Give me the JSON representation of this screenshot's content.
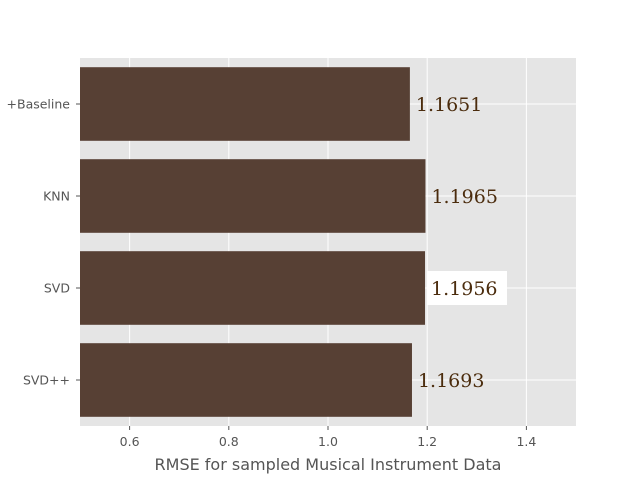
{
  "chart_data": {
    "type": "bar",
    "orientation": "horizontal",
    "categories": [
      "+Baseline",
      "KNN",
      "SVD",
      "SVD++"
    ],
    "values": [
      1.1651,
      1.1965,
      1.1956,
      1.1693
    ],
    "data_labels": [
      "1.1651",
      "1.1965",
      "1.1956",
      "1.1693"
    ],
    "highlighted_label_index": 2,
    "xlabel": "RMSE for sampled Musical Instrument Data",
    "ylabel": "",
    "title": "",
    "xlim": [
      0.5,
      1.5
    ],
    "xticks": [
      0.6,
      0.8,
      1.0,
      1.2,
      1.4
    ],
    "xtick_labels": [
      "0.6",
      "0.8",
      "1.0",
      "1.2",
      "1.4"
    ],
    "grid": true,
    "colors": {
      "bar": "#574034",
      "plot_background": "#e5e5e5",
      "grid": "#ffffff",
      "data_label_text": "#4b2c0d",
      "label_highlight_box": "#ffffff"
    }
  }
}
